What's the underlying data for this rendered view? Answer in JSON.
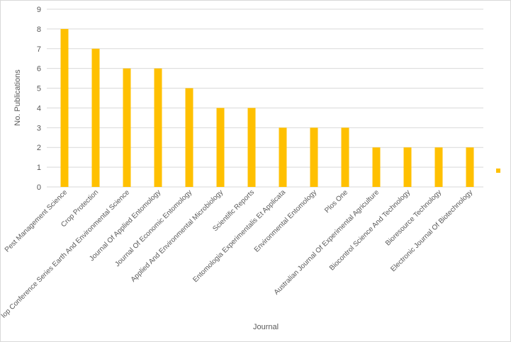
{
  "chart_data": {
    "type": "bar",
    "title": "",
    "xlabel": "Journal",
    "ylabel": "No. Publications",
    "ylim": [
      0,
      9
    ],
    "yticks": [
      "0",
      "1",
      "2",
      "3",
      "4",
      "5",
      "6",
      "7",
      "8",
      "9"
    ],
    "grid": true,
    "legend": "right",
    "bar_color": "#FFC000",
    "categories": [
      "Pest Management Science",
      "Crop Protection",
      "Iop Conference Series Earth And Environmental Science",
      "Journal Of Applied Entomology",
      "Journal Of Economic Entomology",
      "Applied And Environmental Microbiology",
      "Scientific Reports",
      "Entomologia Experimentalis Et Applicata",
      "Environmental Entomology",
      "Plos One",
      "Australian Journal Of Experimental Agriculture",
      "Biocontrol Science And Technology",
      "Bioresource Technology",
      "Electronic Journal Of Biotechnology"
    ],
    "values": [
      8,
      7,
      6,
      6,
      5,
      4,
      4,
      3,
      3,
      3,
      2,
      2,
      2,
      2
    ]
  }
}
